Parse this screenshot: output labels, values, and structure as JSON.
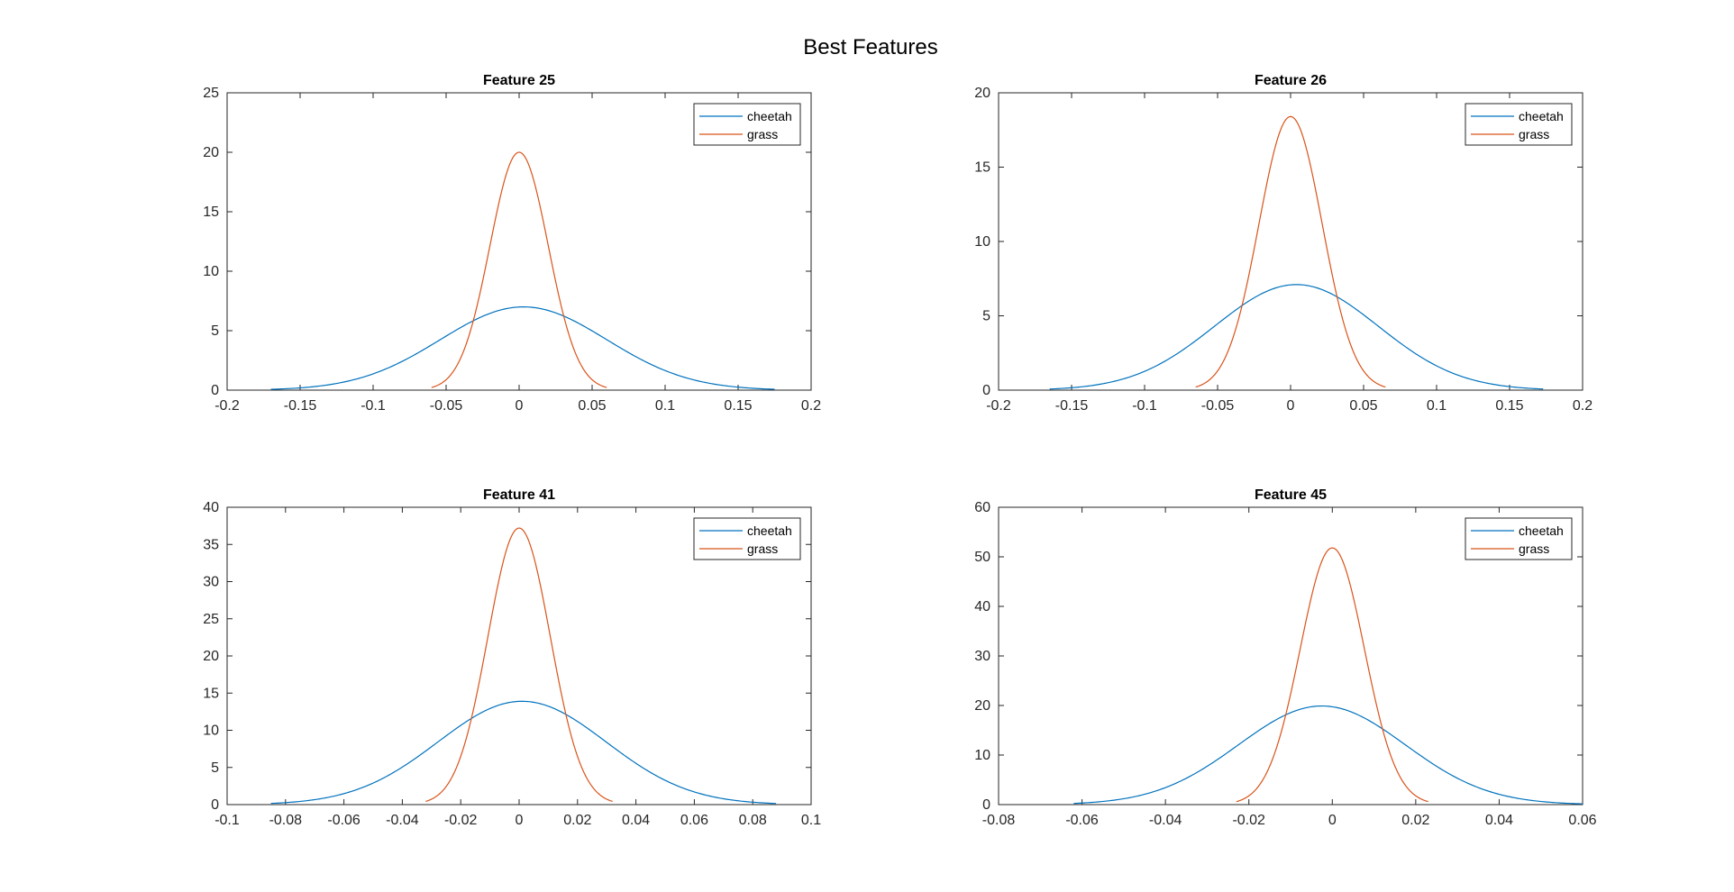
{
  "figure_title": "Best Features",
  "colors": {
    "cheetah": "#0072BD",
    "grass": "#D95319"
  },
  "chart_data": [
    {
      "type": "line",
      "title": "Feature 25",
      "xlim": [
        -0.2,
        0.2
      ],
      "ylim": [
        0,
        25
      ],
      "xticks": [
        -0.2,
        -0.15,
        -0.1,
        -0.05,
        0,
        0.05,
        0.1,
        0.15,
        0.2
      ],
      "xtick_labels": [
        "-0.2",
        "-0.15",
        "-0.1",
        "-0.05",
        "0",
        "0.05",
        "0.1",
        "0.15",
        "0.2"
      ],
      "yticks": [
        0,
        5,
        10,
        15,
        20,
        25
      ],
      "ytick_labels": [
        "0",
        "5",
        "10",
        "15",
        "20",
        "25"
      ],
      "legend": {
        "position": "top-right",
        "entries": [
          "cheetah",
          "grass"
        ]
      },
      "series": [
        {
          "name": "cheetah",
          "curve": "gaussian",
          "mean": 0.003,
          "std": 0.057,
          "peak": 7.0,
          "x_range": [
            -0.17,
            0.175
          ]
        },
        {
          "name": "grass",
          "curve": "gaussian",
          "mean": 0.0,
          "std": 0.02,
          "peak": 20.0,
          "x_range": [
            -0.06,
            0.06
          ]
        }
      ]
    },
    {
      "type": "line",
      "title": "Feature 26",
      "xlim": [
        -0.2,
        0.2
      ],
      "ylim": [
        0,
        20
      ],
      "xticks": [
        -0.2,
        -0.15,
        -0.1,
        -0.05,
        0,
        0.05,
        0.1,
        0.15,
        0.2
      ],
      "xtick_labels": [
        "-0.2",
        "-0.15",
        "-0.1",
        "-0.05",
        "0",
        "0.05",
        "0.1",
        "0.15",
        "0.2"
      ],
      "yticks": [
        0,
        5,
        10,
        15,
        20
      ],
      "ytick_labels": [
        "0",
        "5",
        "10",
        "15",
        "20"
      ],
      "legend": {
        "position": "top-right",
        "entries": [
          "cheetah",
          "grass"
        ]
      },
      "series": [
        {
          "name": "cheetah",
          "curve": "gaussian",
          "mean": 0.004,
          "std": 0.056,
          "peak": 7.1,
          "x_range": [
            -0.165,
            0.173
          ]
        },
        {
          "name": "grass",
          "curve": "gaussian",
          "mean": 0.0,
          "std": 0.0217,
          "peak": 18.4,
          "x_range": [
            -0.065,
            0.065
          ]
        }
      ]
    },
    {
      "type": "line",
      "title": "Feature 41",
      "xlim": [
        -0.1,
        0.1
      ],
      "ylim": [
        0,
        40
      ],
      "xticks": [
        -0.1,
        -0.08,
        -0.06,
        -0.04,
        -0.02,
        0,
        0.02,
        0.04,
        0.06,
        0.08,
        0.1
      ],
      "xtick_labels": [
        "-0.1",
        "-0.08",
        "-0.06",
        "-0.04",
        "-0.02",
        "0",
        "0.02",
        "0.04",
        "0.06",
        "0.08",
        "0.1"
      ],
      "yticks": [
        0,
        5,
        10,
        15,
        20,
        25,
        30,
        35,
        40
      ],
      "ytick_labels": [
        "0",
        "5",
        "10",
        "15",
        "20",
        "25",
        "30",
        "35",
        "40"
      ],
      "legend": {
        "position": "top-right",
        "entries": [
          "cheetah",
          "grass"
        ]
      },
      "series": [
        {
          "name": "cheetah",
          "curve": "gaussian",
          "mean": 0.001,
          "std": 0.0288,
          "peak": 13.9,
          "x_range": [
            -0.085,
            0.088
          ]
        },
        {
          "name": "grass",
          "curve": "gaussian",
          "mean": 0.0,
          "std": 0.0107,
          "peak": 37.2,
          "x_range": [
            -0.032,
            0.032
          ]
        }
      ]
    },
    {
      "type": "line",
      "title": "Feature 45",
      "xlim": [
        -0.08,
        0.06
      ],
      "ylim": [
        0,
        60
      ],
      "xticks": [
        -0.08,
        -0.06,
        -0.04,
        -0.02,
        0,
        0.02,
        0.04,
        0.06
      ],
      "xtick_labels": [
        "-0.08",
        "-0.06",
        "-0.04",
        "-0.02",
        "0",
        "0.02",
        "0.04",
        "0.06"
      ],
      "yticks": [
        0,
        10,
        20,
        30,
        40,
        50,
        60
      ],
      "ytick_labels": [
        "0",
        "10",
        "20",
        "30",
        "40",
        "50",
        "60"
      ],
      "legend": {
        "position": "top-right",
        "entries": [
          "cheetah",
          "grass"
        ]
      },
      "series": [
        {
          "name": "cheetah",
          "curve": "gaussian",
          "mean": -0.0025,
          "std": 0.02,
          "peak": 19.9,
          "x_range": [
            -0.062,
            0.06
          ]
        },
        {
          "name": "grass",
          "curve": "gaussian",
          "mean": 0.0,
          "std": 0.0077,
          "peak": 51.8,
          "x_range": [
            -0.023,
            0.023
          ]
        }
      ]
    }
  ]
}
